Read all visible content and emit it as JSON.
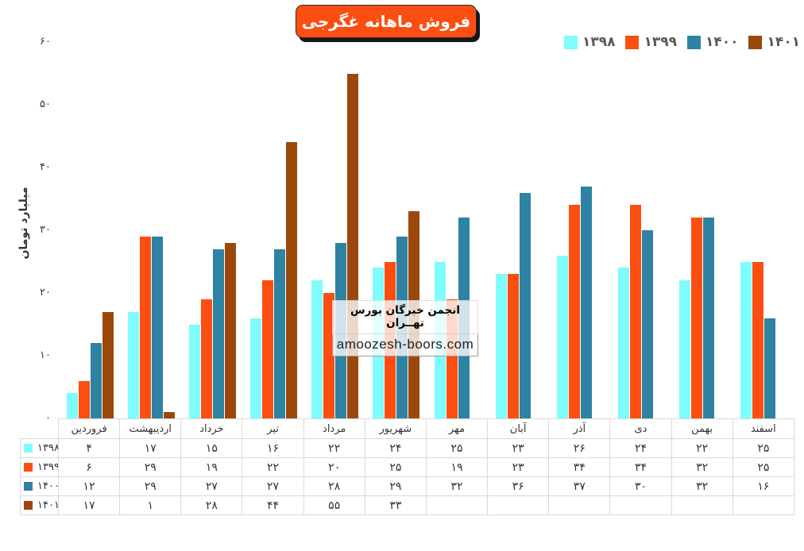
{
  "title": "فروش ماهانه غگرجی",
  "watermark": {
    "line1": "انجمن خبرگان بورس تهــران",
    "line2": "amoozesh-boors.com"
  },
  "colors": {
    "badge_background": "#FC4E11",
    "badge_shadow": "#171717",
    "series_1398": "#7FFCFD",
    "series_1399": "#FC4E11",
    "series_1400": "#2E82A2",
    "series_1401": "#9C480C",
    "table_border": "#D9D9D9",
    "legend_text": "#595959"
  },
  "chart_data": {
    "type": "bar",
    "title": "فروش ماهانه غگرجی",
    "xlabel": "",
    "ylabel": "میلیارد تومان",
    "ylim": [
      0,
      60
    ],
    "yticks": [
      0,
      10,
      20,
      30,
      40,
      50,
      60
    ],
    "grid": false,
    "legend_position": "top-right",
    "digit_style": "persian",
    "categories": [
      "فروردین",
      "اردیبهشت",
      "خرداد",
      "تیر",
      "مرداد",
      "شهریور",
      "مهر",
      "آبان",
      "آذر",
      "دی",
      "بهمن",
      "اسفند"
    ],
    "series": [
      {
        "name": "۱۳۹۸",
        "year": 1398,
        "color": "#7FFCFD",
        "values": [
          4,
          17,
          15,
          16,
          22,
          24,
          25,
          23,
          26,
          24,
          22,
          25
        ]
      },
      {
        "name": "۱۳۹۹",
        "year": 1399,
        "color": "#FC4E11",
        "values": [
          6,
          29,
          19,
          22,
          20,
          25,
          19,
          23,
          34,
          34,
          32,
          25
        ]
      },
      {
        "name": "۱۴۰۰",
        "year": 1400,
        "color": "#2E82A2",
        "values": [
          12,
          29,
          27,
          27,
          28,
          29,
          32,
          36,
          37,
          30,
          32,
          16
        ]
      },
      {
        "name": "۱۴۰۱",
        "year": 1401,
        "color": "#9C480C",
        "values": [
          17,
          1,
          28,
          44,
          55,
          33,
          null,
          null,
          null,
          null,
          null,
          null
        ]
      }
    ]
  }
}
